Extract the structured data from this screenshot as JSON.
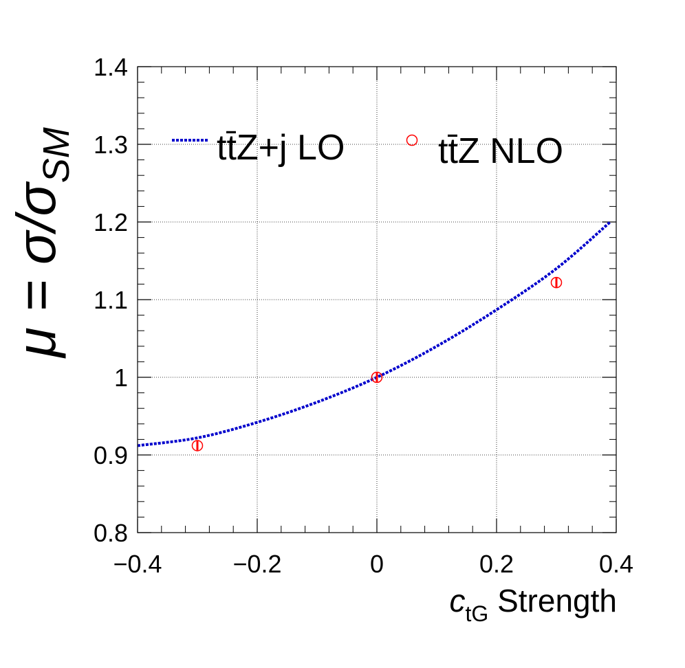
{
  "chart_data": {
    "type": "scatter",
    "xlabel_var": "c",
    "xlabel_sub": "tG",
    "xlabel_rest": " Strength",
    "ylabel_mu": "μ = σ/σ",
    "ylabel_sub": "SM",
    "xlim": [
      -0.4,
      0.4
    ],
    "ylim": [
      0.8,
      1.4
    ],
    "xticks": [
      {
        "value": -0.4,
        "label": "−0.4"
      },
      {
        "value": -0.2,
        "label": "−0.2"
      },
      {
        "value": 0.0,
        "label": "0"
      },
      {
        "value": 0.2,
        "label": "0.2"
      },
      {
        "value": 0.4,
        "label": "0.4"
      }
    ],
    "yticks": [
      {
        "value": 0.8,
        "label": "0.8"
      },
      {
        "value": 0.9,
        "label": "0.9"
      },
      {
        "value": 1.0,
        "label": "1"
      },
      {
        "value": 1.1,
        "label": "1.1"
      },
      {
        "value": 1.2,
        "label": "1.2"
      },
      {
        "value": 1.3,
        "label": "1.3"
      },
      {
        "value": 1.4,
        "label": "1.4"
      }
    ],
    "grid": true,
    "legend_placement": "top",
    "series": [
      {
        "name": "tt̄Z+j LO",
        "kind": "dotted-line",
        "color": "#0000cc",
        "x": [
          -0.4,
          -0.3,
          -0.2,
          -0.1,
          0.0,
          0.1,
          0.2,
          0.3,
          0.39
        ],
        "y": [
          0.912,
          0.922,
          0.942,
          0.968,
          1.0,
          1.04,
          1.087,
          1.14,
          1.2
        ]
      },
      {
        "name": "tt̄Z NLO",
        "kind": "markers",
        "color": "#ff0000",
        "x": [
          -0.3,
          0.0,
          0.3
        ],
        "y": [
          0.912,
          1.0,
          1.122
        ],
        "yerr": [
          0.006,
          0.006,
          0.006
        ]
      }
    ]
  }
}
